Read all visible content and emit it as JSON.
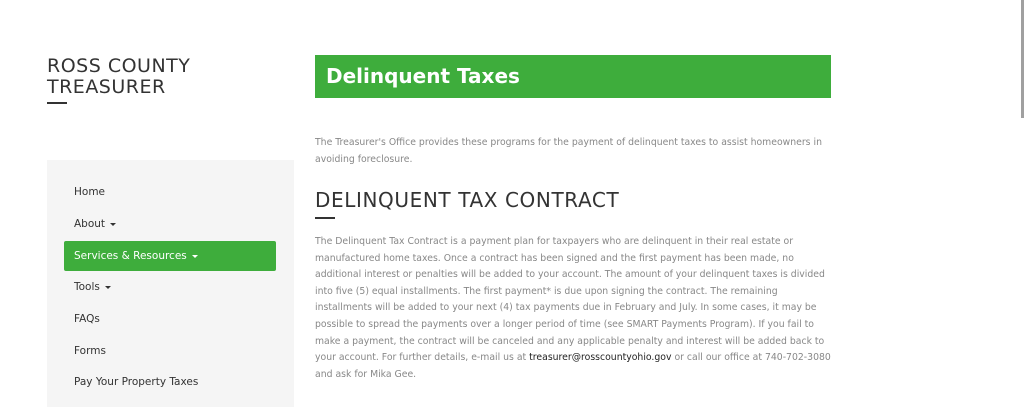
{
  "site": {
    "logo_line1": "ROSS COUNTY",
    "logo_line2": "TREASURER"
  },
  "nav": {
    "items": [
      {
        "label": "Home"
      },
      {
        "label": "About"
      },
      {
        "label": "Services & Resources"
      },
      {
        "label": "Tools"
      },
      {
        "label": "FAQs"
      },
      {
        "label": "Forms"
      },
      {
        "label": "Pay Your Property Taxes"
      }
    ],
    "accent": "#3ead3c"
  },
  "main": {
    "title": "Delinquent Taxes",
    "intro": "The Treasurer's Office provides these programs for the payment of delinquent taxes to assist homeowners in avoiding foreclosure.",
    "section_title": "DELINQUENT TAX CONTRACT",
    "body_before": "The Delinquent Tax Contract is a payment plan for taxpayers who are delinquent in their real estate or manufactured home taxes. Once a contract has been signed and the first payment has been made, no additional interest or penalties will be added to your account. The amount of your delinquent taxes is divided into five (5) equal installments. The first payment* is due upon signing the contract. The remaining installments will be added to your next (4) tax payments due in February and July. In some cases, it may be possible to spread the payments over a longer period of time (see SMART Payments Program). If you fail to make a payment, the contract will be canceled and any applicable penalty and interest will be added back to your account. For further details, e-mail us at ",
    "email": "treasurer@rosscountyohio.gov",
    "body_after": " or call our office at 740-702-3080 and ask for Mika Gee."
  }
}
